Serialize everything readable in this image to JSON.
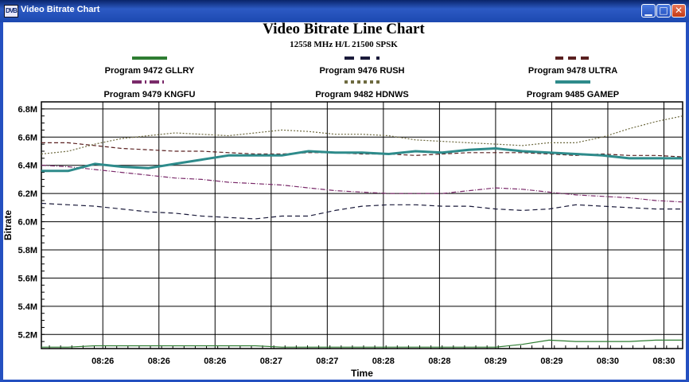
{
  "window": {
    "title": "Video Bitrate Chart",
    "icon_text": "DVB",
    "buttons": [
      "minimize-icon",
      "maximize-icon",
      "close-icon"
    ]
  },
  "chart_data": {
    "type": "line",
    "title": "Video Bitrate Line Chart",
    "subtitle": "12558 MHz H/L 21500 SPSK",
    "xlabel": "Time",
    "ylabel": "Bitrate",
    "ylim": [
      5.1,
      6.85
    ],
    "grid": true,
    "legend_position": "top",
    "x": [
      0,
      1,
      2,
      3,
      4,
      5,
      6,
      7,
      8,
      9,
      10,
      11,
      12,
      13,
      14,
      15,
      16,
      17,
      18,
      19,
      20,
      21,
      22,
      23,
      24
    ],
    "x_tick_positions": [
      2.3,
      4.4,
      6.5,
      8.6,
      10.7,
      12.8,
      14.9,
      17.0,
      19.1,
      21.2,
      23.3
    ],
    "x_tick_labels": [
      "08:26",
      "08:26",
      "08:26",
      "08:27",
      "08:27",
      "08:28",
      "08:28",
      "08:29",
      "08:29",
      "08:30",
      "08:30"
    ],
    "y_ticks": [
      5.2,
      5.4,
      5.6,
      5.8,
      6.0,
      6.2,
      6.4,
      6.6,
      6.8
    ],
    "y_tick_labels": [
      "5.2M",
      "5.4M",
      "5.6M",
      "5.8M",
      "6.0M",
      "6.2M",
      "6.4M",
      "6.6M",
      "6.8M"
    ],
    "series": [
      {
        "name": "Program 9472 GLLRY",
        "color": "#2e7d32",
        "dash": "",
        "width": 1.2,
        "values": [
          5.11,
          5.11,
          5.12,
          5.12,
          5.12,
          5.12,
          5.12,
          5.12,
          5.12,
          5.11,
          5.11,
          5.11,
          5.11,
          5.11,
          5.11,
          5.11,
          5.11,
          5.11,
          5.13,
          5.16,
          5.15,
          5.15,
          5.15,
          5.16,
          5.16
        ]
      },
      {
        "name": "Program 9476 RUSH",
        "color": "#1a1a3a",
        "dash": "6,4",
        "width": 1.2,
        "values": [
          6.13,
          6.12,
          6.11,
          6.09,
          6.07,
          6.06,
          6.04,
          6.03,
          6.02,
          6.04,
          6.04,
          6.08,
          6.11,
          6.12,
          6.12,
          6.11,
          6.11,
          6.09,
          6.08,
          6.09,
          6.12,
          6.11,
          6.1,
          6.09,
          6.09
        ]
      },
      {
        "name": "Program 9478 ULTRA",
        "color": "#5a2020",
        "dash": "5,3",
        "width": 1.2,
        "values": [
          6.56,
          6.56,
          6.54,
          6.52,
          6.51,
          6.5,
          6.5,
          6.49,
          6.48,
          6.48,
          6.49,
          6.49,
          6.48,
          6.48,
          6.47,
          6.48,
          6.49,
          6.49,
          6.49,
          6.48,
          6.47,
          6.48,
          6.47,
          6.47,
          6.46
        ]
      },
      {
        "name": "Program 9479 KNGFU",
        "color": "#7a2a6a",
        "dash": "6,2,1,2",
        "width": 1.2,
        "values": [
          6.4,
          6.39,
          6.37,
          6.35,
          6.33,
          6.31,
          6.3,
          6.28,
          6.27,
          6.26,
          6.24,
          6.22,
          6.21,
          6.2,
          6.2,
          6.2,
          6.22,
          6.24,
          6.23,
          6.21,
          6.19,
          6.18,
          6.17,
          6.15,
          6.14
        ]
      },
      {
        "name": "Program 9482 HDNWS",
        "color": "#6e6a40",
        "dash": "2,2",
        "width": 1.2,
        "values": [
          6.48,
          6.5,
          6.55,
          6.59,
          6.61,
          6.63,
          6.62,
          6.61,
          6.63,
          6.65,
          6.64,
          6.62,
          6.62,
          6.61,
          6.58,
          6.57,
          6.56,
          6.55,
          6.54,
          6.56,
          6.56,
          6.6,
          6.66,
          6.71,
          6.75
        ]
      },
      {
        "name": "Program 9485 GAMEP",
        "color": "#2e8b8b",
        "dash": "",
        "width": 3,
        "values": [
          6.36,
          6.36,
          6.41,
          6.39,
          6.38,
          6.41,
          6.44,
          6.47,
          6.47,
          6.47,
          6.5,
          6.49,
          6.49,
          6.48,
          6.5,
          6.49,
          6.51,
          6.52,
          6.5,
          6.49,
          6.48,
          6.47,
          6.45,
          6.45,
          6.45
        ]
      }
    ]
  }
}
